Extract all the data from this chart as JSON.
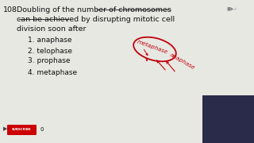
{
  "bg_color": "#e8e8e2",
  "question_num": "108.",
  "question_line1": " Doubling of the number of chromosomes",
  "question_line2": "      can be achieved by disrupting mitotic cell",
  "question_line3": "      division soon after",
  "options": [
    "1. anaphase",
    "2. telophase",
    "3. prophase",
    "4. metaphase"
  ],
  "text_color": "#111111",
  "red_color": "#c0000a",
  "fs_main": 6.8,
  "fs_opt": 6.5
}
